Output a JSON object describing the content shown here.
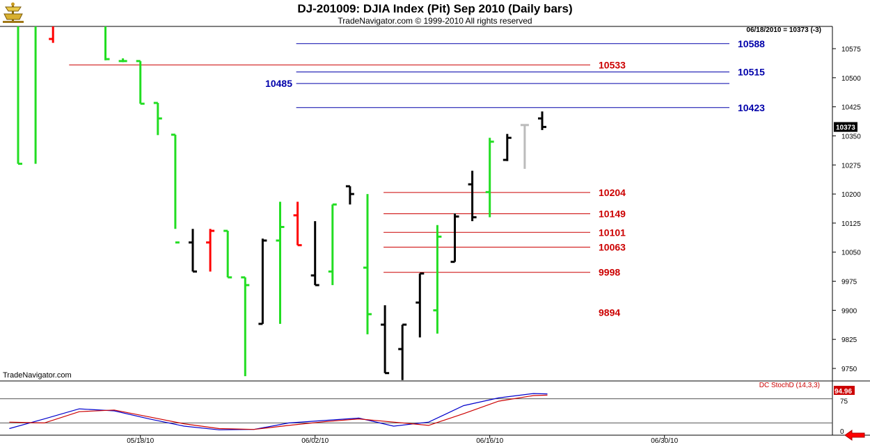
{
  "header": {
    "title": "DJ-201009:  DJIA Index (Pit) Sep 2010  (Daily bars)",
    "subtitle": "TradeNavigator.com © 1999-2010 All rights reserved"
  },
  "watermark": "TradeNavigator.com",
  "last_info": "06/18/2010 = 10373 (-3)",
  "study_label": "DC StochD (14,3,3)",
  "colors": {
    "up": "#22dd22",
    "down": "#ff0000",
    "neutral": "#000000",
    "current": "#bbbbbb",
    "blue_level": "#0000aa",
    "red_level": "#cc0000",
    "stoch_k": "#0000cc",
    "stoch_d": "#cc0000",
    "last_price_bg": "#000000",
    "stoch_badge_bg": "#cc0000"
  },
  "chart_data": [
    {
      "type": "ohlc",
      "price_axis": {
        "ticks": [
          10575,
          10500,
          10425,
          10350,
          10275,
          10200,
          10125,
          10050,
          9975,
          9900,
          9825,
          9750
        ],
        "ylim": [
          9720,
          10630
        ]
      },
      "date_ticks": [
        {
          "label": "05/18/10",
          "index": 7
        },
        {
          "label": "06/02/10",
          "index": 17
        },
        {
          "label": "06/16/10",
          "index": 27
        },
        {
          "label": "06/30/10",
          "index": 37
        }
      ],
      "last_price": "10373",
      "bars": [
        {
          "i": 0,
          "o": 10850,
          "h": 10900,
          "l": 10278,
          "c": 10278,
          "color": "up"
        },
        {
          "i": 1,
          "o": 10900,
          "h": 10900,
          "l": 10278,
          "c": 10640,
          "color": "up"
        },
        {
          "i": 2,
          "o": 10600,
          "h": 10660,
          "l": 10590,
          "c": 10660,
          "color": "down"
        },
        {
          "i": 3,
          "o": 10640,
          "h": 10650,
          "l": 10635,
          "c": 10640,
          "color": "up"
        },
        {
          "i": 4,
          "o": 10640,
          "h": 10640,
          "l": 10635,
          "c": 10635,
          "color": "up"
        },
        {
          "i": 5,
          "o": 10640,
          "h": 10640,
          "l": 10545,
          "c": 10548,
          "color": "up"
        },
        {
          "i": 6,
          "o": 10543,
          "h": 10550,
          "l": 10540,
          "c": 10543,
          "color": "up"
        },
        {
          "i": 7,
          "o": 10543,
          "h": 10543,
          "l": 10433,
          "c": 10433,
          "color": "up"
        },
        {
          "i": 8,
          "o": 10435,
          "h": 10435,
          "l": 10352,
          "c": 10395,
          "color": "up"
        },
        {
          "i": 9,
          "o": 10353,
          "h": 10353,
          "l": 10110,
          "c": 10075,
          "color": "up"
        },
        {
          "i": 10,
          "o": 10075,
          "h": 10110,
          "l": 10000,
          "c": 10000,
          "color": "neutral"
        },
        {
          "i": 11,
          "o": 10075,
          "h": 10110,
          "l": 10000,
          "c": 10105,
          "color": "down"
        },
        {
          "i": 12,
          "o": 10105,
          "h": 10105,
          "l": 9985,
          "c": 9985,
          "color": "up"
        },
        {
          "i": 13,
          "o": 9985,
          "h": 9985,
          "l": 9730,
          "c": 9965,
          "color": "up"
        },
        {
          "i": 14,
          "o": 9865,
          "h": 10085,
          "l": 9865,
          "c": 10080,
          "color": "neutral"
        },
        {
          "i": 15,
          "o": 10080,
          "h": 10180,
          "l": 9865,
          "c": 10115,
          "color": "up"
        },
        {
          "i": 16,
          "o": 10145,
          "h": 10180,
          "l": 10068,
          "c": 10068,
          "color": "down"
        },
        {
          "i": 17,
          "o": 9990,
          "h": 10130,
          "l": 9965,
          "c": 9965,
          "color": "neutral"
        },
        {
          "i": 18,
          "o": 10000,
          "h": 10173,
          "l": 9965,
          "c": 10173,
          "color": "up"
        },
        {
          "i": 19,
          "o": 10220,
          "h": 10220,
          "l": 10173,
          "c": 10200,
          "color": "neutral"
        },
        {
          "i": 20,
          "o": 10010,
          "h": 10200,
          "l": 9838,
          "c": 9890,
          "color": "up"
        },
        {
          "i": 21,
          "o": 9863,
          "h": 9913,
          "l": 9738,
          "c": 9738,
          "color": "neutral"
        },
        {
          "i": 22,
          "o": 9800,
          "h": 9863,
          "l": 9720,
          "c": 9863,
          "color": "neutral"
        },
        {
          "i": 23,
          "o": 9920,
          "h": 9995,
          "l": 9830,
          "c": 9995,
          "color": "neutral"
        },
        {
          "i": 24,
          "o": 9900,
          "h": 10120,
          "l": 9840,
          "c": 10090,
          "color": "up"
        },
        {
          "i": 25,
          "o": 10025,
          "h": 10150,
          "l": 10025,
          "c": 10142,
          "color": "neutral"
        },
        {
          "i": 26,
          "o": 10225,
          "h": 10260,
          "l": 10130,
          "c": 10140,
          "color": "neutral"
        },
        {
          "i": 27,
          "o": 10205,
          "h": 10345,
          "l": 10140,
          "c": 10335,
          "color": "up"
        },
        {
          "i": 28,
          "o": 10288,
          "h": 10355,
          "l": 10285,
          "c": 10345,
          "color": "neutral"
        },
        {
          "i": 29,
          "o": 10378,
          "h": 10380,
          "l": 10265,
          "c": 10378,
          "color": "current"
        },
        {
          "i": 30,
          "o": 10395,
          "h": 10413,
          "l": 10365,
          "c": 10373,
          "color": "neutral"
        }
      ],
      "levels": [
        {
          "value": 10588,
          "label": "10588",
          "color": "blue",
          "x_start_index": 16
        },
        {
          "value": 10533,
          "label": "10533",
          "color": "red",
          "x_start_index": 3
        },
        {
          "value": 10515,
          "label": "10515",
          "color": "blue",
          "x_start_index": 16
        },
        {
          "value": 10485,
          "label": "10485",
          "color": "blue",
          "x_start_index": 16,
          "label_side": "left"
        },
        {
          "value": 10423,
          "label": "10423",
          "color": "blue",
          "x_start_index": 16
        },
        {
          "value": 10204,
          "label": "10204",
          "color": "red",
          "x_start_index": 21
        },
        {
          "value": 10149,
          "label": "10149",
          "color": "red",
          "x_start_index": 21
        },
        {
          "value": 10101,
          "label": "10101",
          "color": "red",
          "x_start_index": 21
        },
        {
          "value": 10063,
          "label": "10063",
          "color": "red",
          "x_start_index": 21
        },
        {
          "value": 9998,
          "label": "9998",
          "color": "red",
          "x_start_index": 21
        },
        {
          "value": 9894,
          "label": "9894",
          "color": "red",
          "x_start_index": 21,
          "no_line": true
        }
      ]
    },
    {
      "type": "line",
      "title": "DC StochD (14,3,3)",
      "ylim": [
        0,
        100
      ],
      "ticks": [
        75,
        0
      ],
      "ref_lines": [
        80,
        20
      ],
      "last_value": "94.96",
      "series": [
        {
          "name": "K",
          "color": "stoch_k",
          "values": [
            [
              -0.5,
              6
            ],
            [
              1.5,
              30
            ],
            [
              3.5,
              55
            ],
            [
              5.5,
              50
            ],
            [
              7.5,
              30
            ],
            [
              9.5,
              12
            ],
            [
              11.5,
              3
            ],
            [
              13.5,
              4
            ],
            [
              15.5,
              20
            ],
            [
              17.5,
              26
            ],
            [
              19.5,
              32
            ],
            [
              21.5,
              12
            ],
            [
              23.5,
              22
            ],
            [
              25.5,
              63
            ],
            [
              27.5,
              82
            ],
            [
              29.5,
              93
            ],
            [
              30.3,
              92
            ]
          ]
        },
        {
          "name": "D",
          "color": "stoch_d",
          "values": [
            [
              -0.5,
              22
            ],
            [
              1.5,
              20
            ],
            [
              3.5,
              48
            ],
            [
              5.5,
              52
            ],
            [
              7.5,
              35
            ],
            [
              9.5,
              18
            ],
            [
              11.5,
              6
            ],
            [
              13.5,
              4
            ],
            [
              15.5,
              14
            ],
            [
              17.5,
              23
            ],
            [
              19.5,
              30
            ],
            [
              21.5,
              22
            ],
            [
              23.5,
              14
            ],
            [
              25.5,
              43
            ],
            [
              27.5,
              74
            ],
            [
              29.5,
              88
            ],
            [
              30.3,
              89
            ]
          ]
        }
      ]
    }
  ]
}
